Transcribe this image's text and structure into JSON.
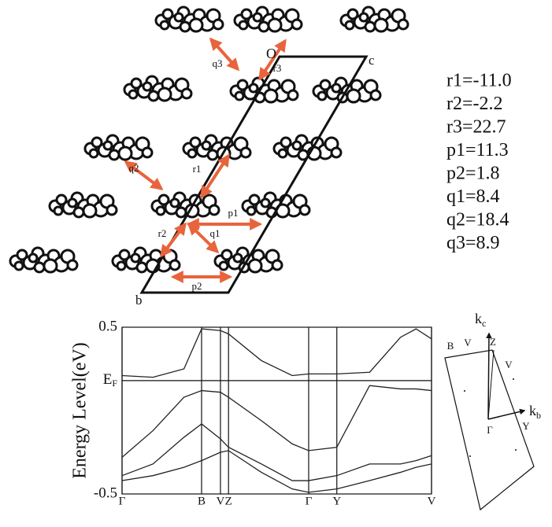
{
  "structure": {
    "origin_label": "O",
    "axis_c": "c",
    "axis_b": "b",
    "arrows": [
      "q3",
      "r3",
      "q2",
      "r1",
      "p1",
      "r2",
      "q1",
      "p2"
    ],
    "couplings": [
      "r1=-11.0",
      "r2=-2.2",
      "r3=22.7",
      "p1=11.3",
      "p2=1.8",
      "q1=8.4",
      "q2=18.4",
      "q3=8.9"
    ]
  },
  "chart_data": {
    "type": "line",
    "ylabel": "Energy Level(eV)",
    "xlim": [
      0,
      1
    ],
    "ylim": [
      -0.5,
      0.5
    ],
    "yticks": [
      {
        "value": -0.5,
        "label": "-0.5"
      },
      {
        "value": 0.18,
        "label": "E",
        "sub": "F"
      },
      0.5
    ],
    "xticks": [
      {
        "value": 0,
        "label": "Γ"
      },
      {
        "value": 0.257,
        "label": "B"
      },
      {
        "value": 0.318,
        "label": "V"
      },
      {
        "value": 0.344,
        "label": "Z"
      },
      {
        "value": 0.603,
        "label": "Γ"
      },
      {
        "value": 0.694,
        "label": "Y"
      },
      {
        "value": 1,
        "label": "V"
      }
    ],
    "x": [
      0,
      0.1,
      0.2,
      0.257,
      0.318,
      0.344,
      0.45,
      0.55,
      0.603,
      0.694,
      0.8,
      0.9,
      0.95,
      1
    ],
    "series": [
      {
        "color": "#222",
        "values": [
          0.21,
          0.2,
          0.25,
          0.49,
          0.48,
          0.46,
          0.3,
          0.21,
          0.22,
          0.22,
          0.23,
          0.44,
          0.49,
          0.43
        ]
      },
      {
        "color": "#222",
        "values": [
          -0.28,
          -0.12,
          0.08,
          0.12,
          0.11,
          0.08,
          -0.06,
          -0.2,
          -0.24,
          -0.22,
          0.15,
          0.13,
          0.13,
          0.12
        ]
      },
      {
        "color": "#222",
        "values": [
          -0.39,
          -0.32,
          -0.16,
          -0.08,
          -0.17,
          -0.22,
          -0.32,
          -0.42,
          -0.42,
          -0.39,
          -0.32,
          -0.32,
          -0.3,
          -0.27
        ]
      },
      {
        "color": "#222",
        "values": [
          -0.42,
          -0.39,
          -0.34,
          -0.3,
          -0.25,
          -0.24,
          -0.37,
          -0.47,
          -0.49,
          -0.47,
          -0.42,
          -0.37,
          -0.34,
          -0.32
        ]
      }
    ]
  },
  "brillouin_zone": {
    "kc": "k",
    "kc_sub": "c",
    "kb": "k",
    "kb_sub": "b",
    "points": [
      "B",
      "V",
      "Z",
      "V",
      "Γ",
      "Y"
    ]
  }
}
